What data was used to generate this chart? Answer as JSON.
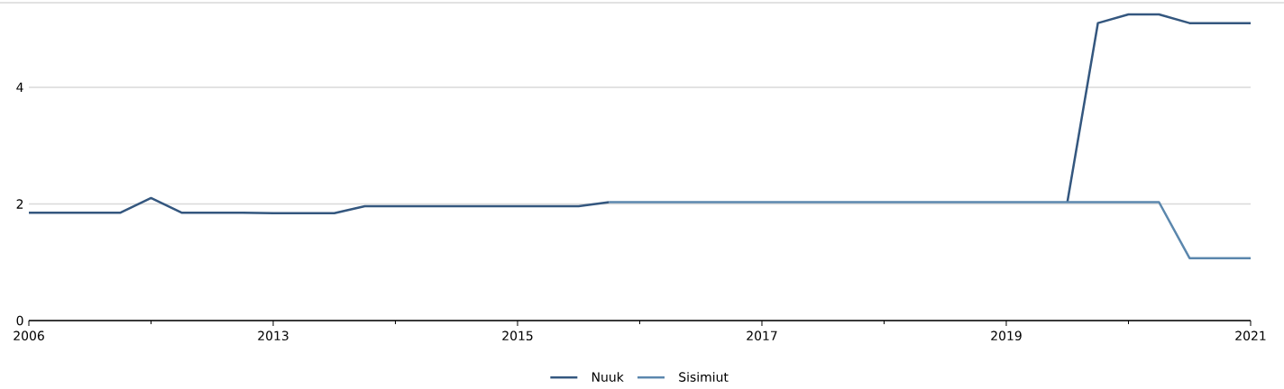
{
  "chart_data": {
    "type": "line",
    "categories": [
      "2006",
      null,
      null,
      null,
      null,
      null,
      null,
      null,
      "2013",
      null,
      null,
      null,
      null,
      null,
      null,
      null,
      "2015",
      null,
      null,
      null,
      null,
      null,
      null,
      null,
      "2017",
      null,
      null,
      null,
      null,
      null,
      null,
      null,
      "2019",
      null,
      null,
      null,
      null,
      null,
      null,
      null,
      "2021"
    ],
    "series": [
      {
        "name": "Nuuk",
        "color": "#34577f",
        "values": [
          1.85,
          1.85,
          1.85,
          1.85,
          2.1,
          1.85,
          1.85,
          1.85,
          1.84,
          1.84,
          1.84,
          1.96,
          1.96,
          1.96,
          1.96,
          1.96,
          1.96,
          1.96,
          1.96,
          2.03,
          null,
          null,
          null,
          null,
          null,
          null,
          null,
          null,
          null,
          null,
          null,
          null,
          null,
          null,
          2.03,
          5.1,
          5.25,
          5.25,
          5.1,
          5.1,
          5.1
        ]
      },
      {
        "name": "Sisimiut",
        "color": "#5b87ad",
        "values": [
          null,
          null,
          null,
          null,
          null,
          null,
          null,
          null,
          null,
          null,
          null,
          null,
          null,
          null,
          null,
          null,
          null,
          null,
          null,
          2.03,
          2.03,
          2.03,
          2.03,
          2.03,
          2.03,
          2.03,
          2.03,
          2.03,
          2.03,
          2.03,
          2.03,
          2.03,
          2.03,
          2.03,
          2.03,
          2.03,
          2.03,
          2.03,
          1.07,
          1.07,
          1.07
        ]
      }
    ],
    "ylim": [
      0,
      5.45
    ],
    "yticks": [
      0,
      2,
      4
    ],
    "grid": "y",
    "legend": "bottom",
    "marker": "none",
    "line_style": "solid"
  }
}
